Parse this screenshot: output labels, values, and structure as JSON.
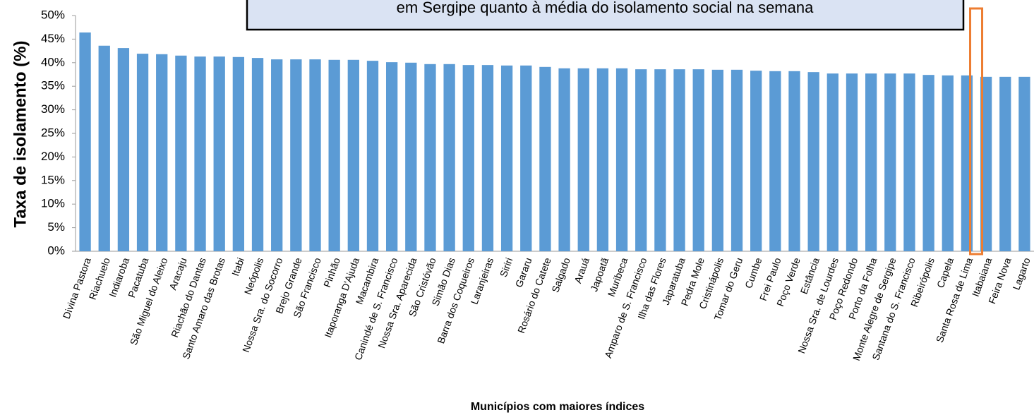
{
  "chart_data": {
    "type": "bar",
    "title": "em Sergipe quanto à média do isolamento social na semana",
    "y_label": "Taxa de isolamento (%)",
    "x_label": "Municípios com maiores índices",
    "color": "#5b9bd5",
    "categories": [
      "Divina Pastora",
      "Riachuelo",
      "Indiaroba",
      "Pacatuba",
      "São Miguel do Aleixo",
      "Aracaju",
      "Riachão do Dantas",
      "Santo Amaro das Brotas",
      "Itabi",
      "Neópolis",
      "Nossa Sra. do Socorro",
      "Brejo Grande",
      "São Francisco",
      "Pinhão",
      "Itaporanga D'Ajuda",
      "Macambira",
      "Canindé de S. Francisco",
      "Nossa Sra. Aparecida",
      "São Cristóvão",
      "Simão Dias",
      "Barra dos Coqueiros",
      "Laranjeiras",
      "Siriri",
      "Gararu",
      "Rosário do Catete",
      "Salgado",
      "Arauá",
      "Japoatã",
      "Muribeca",
      "Amparo de S. Francisco",
      "Ilha das Flores",
      "Japaratuba",
      "Pedra Mole",
      "Cristinápolis",
      "Tomar do Geru",
      "Cumbe",
      "Frei Paulo",
      "Poço Verde",
      "Estância",
      "Nossa Sra. de Lourdes",
      "Poço Redondo",
      "Porto da Folha",
      "Monte Alegre de Sergipe",
      "Santana do S. Francisco",
      "Ribeirópolis",
      "Capela",
      "Santa Rosa de Lima",
      "Itabaiana",
      "Feira Nova",
      "Lagarto"
    ],
    "values": [
      46.4,
      43.6,
      43.1,
      41.9,
      41.8,
      41.5,
      41.3,
      41.3,
      41.2,
      41.0,
      40.7,
      40.7,
      40.7,
      40.6,
      40.6,
      40.4,
      40.1,
      40.0,
      39.7,
      39.7,
      39.5,
      39.5,
      39.4,
      39.4,
      39.1,
      38.8,
      38.8,
      38.8,
      38.8,
      38.6,
      38.6,
      38.6,
      38.6,
      38.5,
      38.5,
      38.3,
      38.2,
      38.2,
      38.0,
      37.7,
      37.7,
      37.7,
      37.7,
      37.7,
      37.4,
      37.3,
      37.3,
      37.0,
      37.0,
      37.0
    ],
    "ylim": [
      0,
      50
    ],
    "yticks": [
      {
        "value": 0,
        "label": "0%"
      },
      {
        "value": 5,
        "label": "5%"
      },
      {
        "value": 10,
        "label": "10%"
      },
      {
        "value": 15,
        "label": "15%"
      },
      {
        "value": 20,
        "label": "20%"
      },
      {
        "value": 25,
        "label": "25%"
      },
      {
        "value": 30,
        "label": "30%"
      },
      {
        "value": 35,
        "label": "35%"
      },
      {
        "value": 40,
        "label": "40%"
      },
      {
        "value": 45,
        "label": "45%"
      },
      {
        "value": 50,
        "label": "50%"
      }
    ]
  }
}
